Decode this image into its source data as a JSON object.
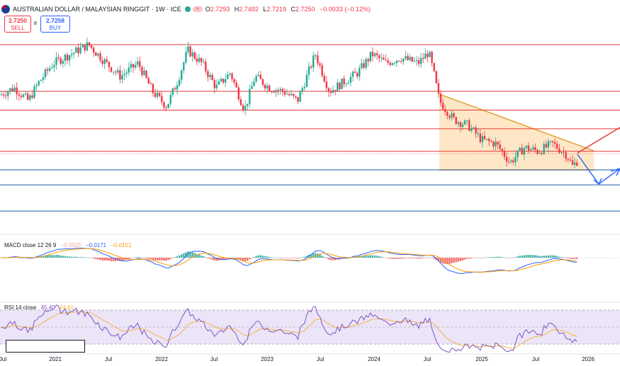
{
  "header": {
    "symbol": "AUSTRALIAN DOLLAR / MALAYSIAN RINGGIT · 1W · ICE",
    "o_label": "O",
    "o": "2.7293",
    "h_label": "H",
    "h": "2.7492",
    "l_label": "L",
    "l": "2.7219",
    "c_label": "C",
    "c": "2.7250",
    "change": "−0.0033 (−0.12%)",
    "badge": "≈"
  },
  "trade": {
    "sell_price": "2.7250",
    "sell_label": "SELL",
    "spread": "8",
    "buy_price": "2.7258",
    "buy_label": "BUY"
  },
  "macd_legend": {
    "name": "MACD close 12 26 9",
    "hist": "−0.0020",
    "macd": "−0.0171",
    "signal": "−0.0151"
  },
  "rsi_legend": {
    "name": "RSI 14 close",
    "rsi": "45.40",
    "ma": "44.60"
  },
  "colors": {
    "up": "#22ab94",
    "down": "#f23645",
    "red_level": "#e53935",
    "blue_level": "#1e5aa8",
    "triangle_fill": "#fde3bd",
    "triangle_line": "#e39b2b",
    "macd": "#2962ff",
    "signal": "#ff9800",
    "rsi": "#7e57c2",
    "rsi_bg": "#ece4f7"
  },
  "chart_data": [
    {
      "type": "candlestick",
      "title": "AUSTRALIAN DOLLAR / MALAYSIAN RINGGIT · 1W · ICE",
      "x_ticks": [
        "Jul",
        "2021",
        "Jul",
        "2022",
        "Jul",
        "2023",
        "Jul",
        "2024",
        "Jul",
        "2025",
        "Jul",
        "2026"
      ],
      "last": {
        "open": 2.7293,
        "high": 2.7492,
        "low": 2.7219,
        "close": 2.725
      },
      "horizontal_levels_red": [
        3.35,
        3.1,
        3.0,
        2.9,
        2.78
      ],
      "horizontal_levels_blue": [
        2.68,
        2.6,
        2.46
      ],
      "descending_triangle": {
        "start": "2024-07",
        "end": "2025-12",
        "top_start": 3.09,
        "top_end": 2.79,
        "base": 2.68
      },
      "projections": [
        "breakout up to about 2.90",
        "breakdown to about 2.58 then rebound"
      ]
    },
    {
      "type": "macd",
      "name": "MACD close 12 26 9",
      "histogram": -0.002,
      "macd": -0.0171,
      "signal": -0.0151
    },
    {
      "type": "line",
      "name": "RSI 14 close",
      "rsi": 45.4,
      "rsi_ma": 44.6,
      "bands": [
        70,
        30
      ]
    }
  ]
}
